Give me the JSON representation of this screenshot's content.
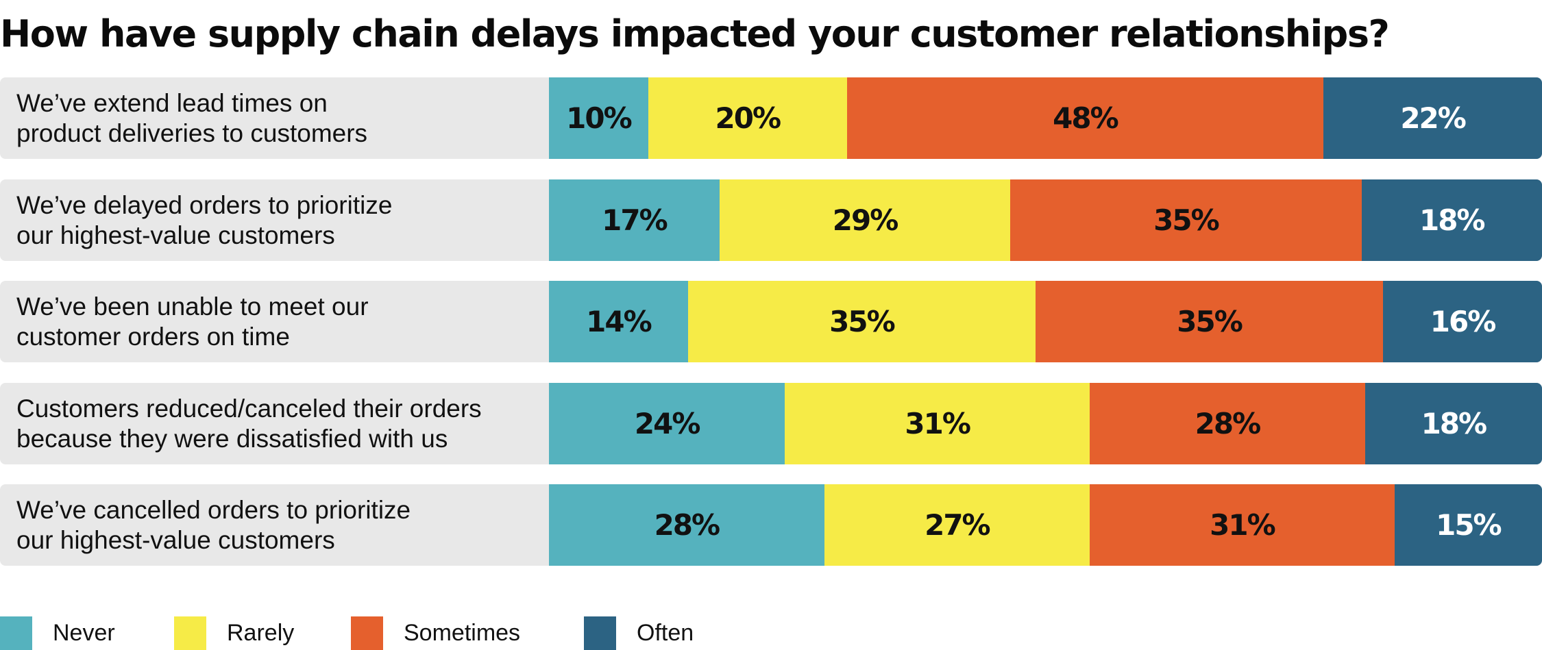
{
  "chart_data": {
    "type": "bar",
    "orientation": "horizontal",
    "stacked": true,
    "title": "How have supply chain delays impacted your customer relationships?",
    "categories": [
      "We’ve extend lead times on product deliveries to customers",
      "We’ve delayed orders to prioritize our highest-value customers",
      "We’ve been unable to meet our customer orders on time",
      "Customers reduced/canceled their orders because they were dissatisfied with us",
      "We’ve cancelled orders to prioritize our highest-value customers"
    ],
    "series": [
      {
        "name": "Never",
        "color": "#55b2be",
        "text_color": "#111111",
        "values": [
          10,
          17,
          14,
          24,
          28
        ]
      },
      {
        "name": "Rarely",
        "color": "#f6eb47",
        "text_color": "#111111",
        "values": [
          20,
          29,
          35,
          31,
          27
        ]
      },
      {
        "name": "Sometimes",
        "color": "#e5602d",
        "text_color": "#111111",
        "values": [
          48,
          35,
          35,
          28,
          31
        ]
      },
      {
        "name": "Often",
        "color": "#2c6383",
        "text_color": "#ffffff",
        "values": [
          22,
          18,
          16,
          18,
          15
        ]
      }
    ],
    "labels": [
      [
        "10%",
        "20%",
        "48%",
        "22%"
      ],
      [
        "17%",
        "29%",
        "35%",
        "18%"
      ],
      [
        "14%",
        "35%",
        "35%",
        "16%"
      ],
      [
        "24%",
        "31%",
        "28%",
        "18%"
      ],
      [
        "28%",
        "27%",
        "31%",
        "15%"
      ]
    ],
    "legend": "bottom-left",
    "grid": false,
    "row_background": "#e8e8e8"
  }
}
